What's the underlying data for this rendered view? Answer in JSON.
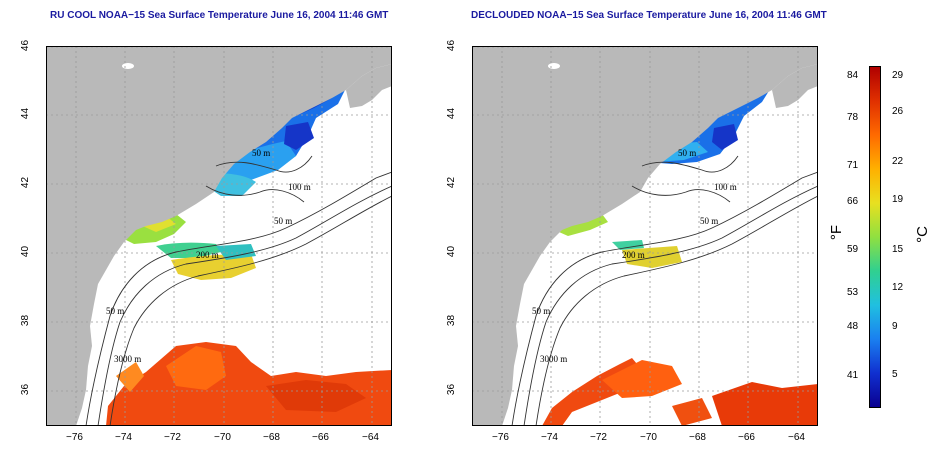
{
  "panels": [
    {
      "title": "RU COOL NOAA−15 Sea Surface Temperature June 16, 2004 11:46 GMT",
      "variant": "cloudy",
      "x_ticks": [
        "−76",
        "−74",
        "−72",
        "−70",
        "−68",
        "−66",
        "−64"
      ],
      "y_ticks": [
        "46",
        "44",
        "42",
        "40",
        "38",
        "36"
      ],
      "depth_labels": [
        "50 m",
        "100 m",
        "200 m",
        "50 m",
        "3000 m",
        "50 m"
      ]
    },
    {
      "title": "DECLOUDED NOAA−15 Sea Surface Temperature June 16, 2004 11:46 GMT",
      "variant": "declouded",
      "x_ticks": [
        "−76",
        "−74",
        "−72",
        "−70",
        "−68",
        "−66",
        "−64"
      ],
      "y_ticks": [
        "46",
        "44",
        "42",
        "40",
        "38",
        "36"
      ],
      "depth_labels": [
        "50 m",
        "100 m",
        "200 m",
        "50 m",
        "3000 m",
        "50 m"
      ]
    }
  ],
  "colorbar": {
    "fahrenheit_ticks": [
      "84",
      "78",
      "71",
      "66",
      "59",
      "53",
      "48",
      "41"
    ],
    "celsius_ticks": [
      "29",
      "26",
      "22",
      "19",
      "15",
      "12",
      "9",
      "5"
    ],
    "fahrenheit_unit": "°F",
    "celsius_unit": "°C",
    "colors": [
      "#b00000",
      "#e03000",
      "#ff6a00",
      "#ffb000",
      "#e8e020",
      "#90e040",
      "#30d090",
      "#20c0e0",
      "#1a80f0",
      "#1030d0",
      "#0a0090"
    ]
  },
  "colors": {
    "land": "#b9b9b9",
    "ocean_cloud": "#ffffff",
    "title": "#1a1aa0",
    "contour": "#333333",
    "grid": "#9a9a9a"
  }
}
